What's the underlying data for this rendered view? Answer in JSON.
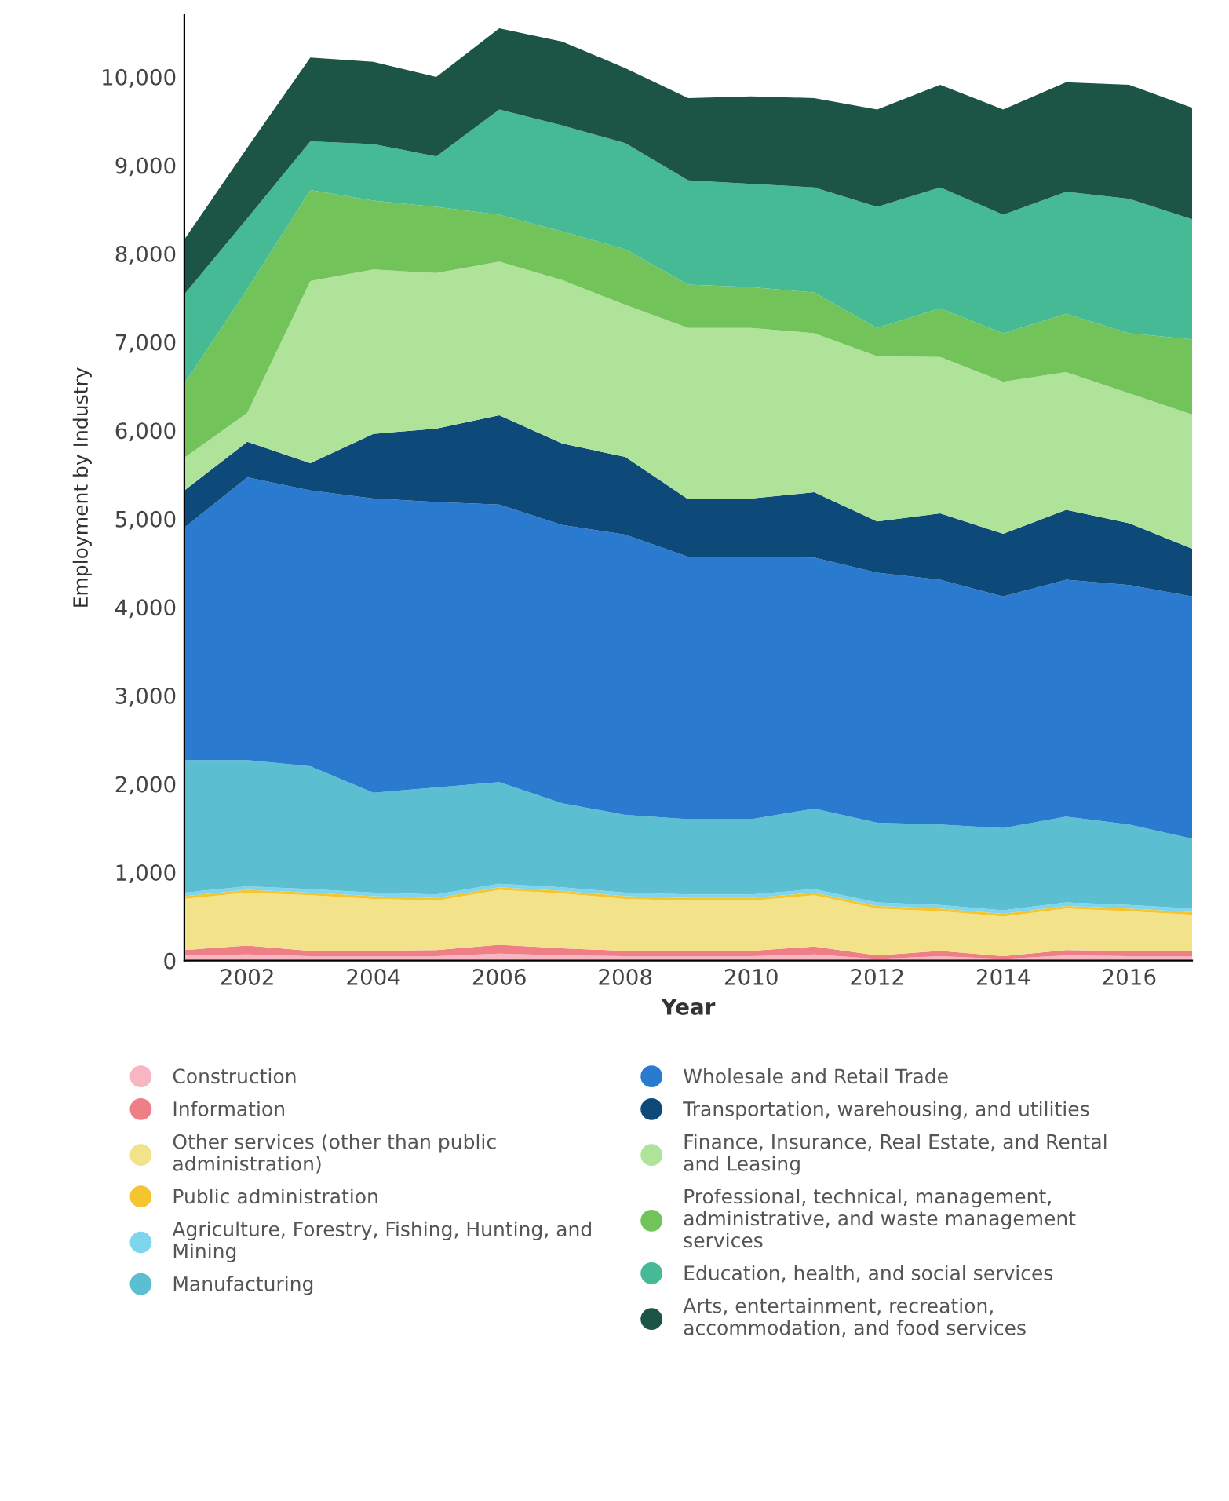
{
  "chart_data": {
    "type": "area",
    "stacked": true,
    "xlabel": "Year",
    "ylabel": "Employment by Industry",
    "x": [
      2001,
      2002,
      2003,
      2004,
      2005,
      2006,
      2007,
      2008,
      2009,
      2010,
      2011,
      2012,
      2013,
      2014,
      2015,
      2016,
      2017
    ],
    "xlim": [
      2001,
      2017
    ],
    "xticks": [
      2002,
      2004,
      2006,
      2008,
      2010,
      2012,
      2014,
      2016
    ],
    "ylim": [
      0,
      10700
    ],
    "yticks": [
      {
        "value": 0,
        "label": "0"
      },
      {
        "value": 1000,
        "label": "1,000"
      },
      {
        "value": 2000,
        "label": "2,000"
      },
      {
        "value": 3000,
        "label": "3,000"
      },
      {
        "value": 4000,
        "label": "4,000"
      },
      {
        "value": 5000,
        "label": "5,000"
      },
      {
        "value": 6000,
        "label": "6,000"
      },
      {
        "value": 7000,
        "label": "7,000"
      },
      {
        "value": 8000,
        "label": "8,000"
      },
      {
        "value": 9000,
        "label": "9,000"
      },
      {
        "value": 10000,
        "label": "10,000"
      }
    ],
    "grid": false,
    "legend": "bottom",
    "series": [
      {
        "name": "Construction",
        "color": "#f7b6c2",
        "values": [
          60,
          70,
          50,
          50,
          50,
          80,
          60,
          50,
          50,
          50,
          70,
          20,
          50,
          20,
          60,
          50,
          50
        ]
      },
      {
        "name": "Information",
        "color": "#ef7f86",
        "values": [
          60,
          100,
          60,
          60,
          70,
          100,
          80,
          60,
          60,
          60,
          90,
          40,
          60,
          30,
          60,
          60,
          60
        ]
      },
      {
        "name": "Other services (other than public administration)",
        "color": "#f2e38a",
        "values": [
          580,
          600,
          630,
          590,
          560,
          620,
          620,
          590,
          570,
          570,
          580,
          530,
          450,
          450,
          470,
          450,
          410
        ]
      },
      {
        "name": "Public administration",
        "color": "#f5c530",
        "values": [
          30,
          30,
          30,
          30,
          30,
          30,
          30,
          30,
          30,
          30,
          30,
          30,
          30,
          30,
          30,
          30,
          30
        ]
      },
      {
        "name": "Agriculture, Forestry, Fishing, Hunting, and Mining",
        "color": "#7fd6ec",
        "values": [
          40,
          40,
          40,
          40,
          40,
          40,
          40,
          40,
          40,
          40,
          40,
          40,
          40,
          40,
          40,
          40,
          40
        ]
      },
      {
        "name": "Manufacturing",
        "color": "#5bbfd1",
        "values": [
          1500,
          1430,
          1390,
          1130,
          1210,
          1150,
          950,
          880,
          850,
          850,
          910,
          900,
          910,
          930,
          970,
          910,
          790
        ]
      },
      {
        "name": "Wholesale and Retail Trade",
        "color": "#2a7bcf",
        "values": [
          2630,
          3200,
          3120,
          3330,
          3230,
          3140,
          3150,
          3170,
          2970,
          2970,
          2840,
          2830,
          2770,
          2620,
          2680,
          2710,
          2740
        ]
      },
      {
        "name": "Transportation, warehousing, and utilities",
        "color": "#0d4a7a",
        "values": [
          420,
          400,
          310,
          730,
          830,
          1010,
          920,
          880,
          650,
          660,
          740,
          580,
          750,
          710,
          790,
          700,
          540
        ]
      },
      {
        "name": "Finance, Insurance, Real Estate, and Rental and Leasing",
        "color": "#b0e39a",
        "values": [
          370,
          330,
          2060,
          1860,
          1760,
          1740,
          1850,
          1720,
          1940,
          1930,
          1800,
          1870,
          1770,
          1720,
          1560,
          1470,
          1520
        ]
      },
      {
        "name": "Professional, technical, management, administrative, and waste management services",
        "color": "#72c35a",
        "values": [
          840,
          1400,
          1030,
          780,
          750,
          530,
          550,
          630,
          490,
          460,
          460,
          320,
          550,
          550,
          660,
          680,
          850
        ]
      },
      {
        "name": "Education, health, and social services",
        "color": "#46b995",
        "values": [
          1010,
          800,
          550,
          640,
          570,
          1190,
          1200,
          1200,
          1180,
          1170,
          1190,
          1370,
          1370,
          1340,
          1380,
          1520,
          1360
        ]
      },
      {
        "name": "Arts, entertainment, recreation, accommodation, and food services",
        "color": "#1c5546",
        "values": [
          620,
          800,
          950,
          930,
          900,
          920,
          950,
          850,
          930,
          990,
          1010,
          1100,
          1160,
          1190,
          1240,
          1290,
          1260
        ]
      }
    ]
  }
}
